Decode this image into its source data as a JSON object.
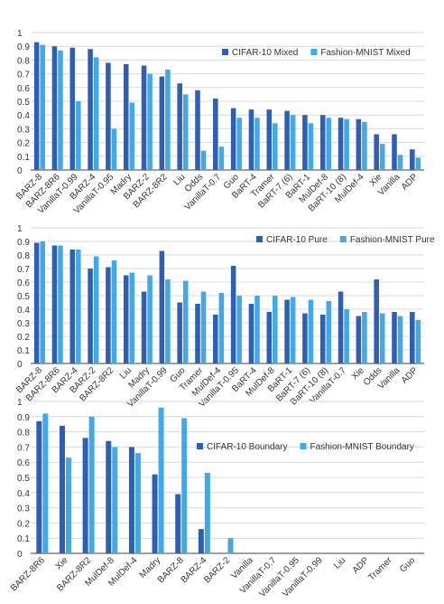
{
  "colors": {
    "series1": "#2f5fb3",
    "series2": "#41a9e6",
    "grid": "#d9d9d9",
    "axis": "#404040",
    "text": "#333333"
  },
  "chart_data": [
    {
      "type": "bar",
      "ylim": [
        0,
        1
      ],
      "yticks": [
        "0",
        "0.1",
        "0.2",
        "0.3",
        "0.4",
        "0.5",
        "0.6",
        "0.7",
        "0.8",
        "0.9",
        "1"
      ],
      "grid": true,
      "legend_position": "top-right",
      "categories": [
        "BARZ-8",
        "BARZ-8R6",
        "VanillaT-0.99",
        "BARZ-4",
        "VanillaT-0.95",
        "Madry",
        "BARZ-2",
        "BARZ-8R2",
        "Liu",
        "Odds",
        "VanillaT-0.7",
        "Guo",
        "BaRT-4",
        "Tramer",
        "BaRT-7 (6)",
        "BaRT-1",
        "MulDef-8",
        "BaRT-10 (8)",
        "MulDef-4",
        "Xie",
        "Vanilla",
        "ADP"
      ],
      "series": [
        {
          "name": "CIFAR-10 Mixed",
          "values": [
            0.93,
            0.9,
            0.89,
            0.88,
            0.78,
            0.77,
            0.76,
            0.68,
            0.63,
            0.58,
            0.52,
            0.45,
            0.44,
            0.44,
            0.43,
            0.4,
            0.4,
            0.38,
            0.37,
            0.26,
            0.26,
            0.15
          ]
        },
        {
          "name": "Fashion-MNIST Mixed",
          "values": [
            0.91,
            0.87,
            0.5,
            0.82,
            0.3,
            0.49,
            0.7,
            0.73,
            0.55,
            0.14,
            0.17,
            0.38,
            0.38,
            0.34,
            0.4,
            0.34,
            0.38,
            0.37,
            0.35,
            0.19,
            0.11,
            0.09
          ]
        }
      ]
    },
    {
      "type": "bar",
      "ylim": [
        0,
        1
      ],
      "yticks": [
        "0",
        "0.1",
        "0.2",
        "0.3",
        "0.4",
        "0.5",
        "0.6",
        "0.7",
        "0.8",
        "0.9",
        "1"
      ],
      "grid": true,
      "legend_position": "top-right",
      "categories": [
        "BARZ-8",
        "BARZ-8R6",
        "BARZ-4",
        "BARZ-2",
        "BARZ-8R2",
        "Liu",
        "Madry",
        "VanillaT-0.99",
        "Guo",
        "Tramer",
        "MulDef-4",
        "VanillaT-0.95",
        "BaRT-4",
        "MulDef-8",
        "BaRT-1",
        "BaRT-7 (6)",
        "BaRT-10 (8)",
        "VanillaT-0.7",
        "Xie",
        "Odds",
        "Vanilla",
        "ADP"
      ],
      "series": [
        {
          "name": "CIFAR-10 Pure",
          "values": [
            0.89,
            0.87,
            0.84,
            0.7,
            0.71,
            0.65,
            0.53,
            0.83,
            0.45,
            0.44,
            0.36,
            0.72,
            0.44,
            0.38,
            0.47,
            0.37,
            0.36,
            0.53,
            0.35,
            0.62,
            0.38,
            0.38
          ]
        },
        {
          "name": "Fashion-MNIST Pure",
          "values": [
            0.9,
            0.87,
            0.84,
            0.79,
            0.76,
            0.67,
            0.65,
            0.62,
            0.61,
            0.53,
            0.52,
            0.5,
            0.5,
            0.5,
            0.49,
            0.47,
            0.46,
            0.4,
            0.38,
            0.37,
            0.35,
            0.32
          ]
        }
      ]
    },
    {
      "type": "bar",
      "ylim": [
        0,
        1
      ],
      "yticks": [
        "0",
        "0.1",
        "0.2",
        "0.3",
        "0.4",
        "0.5",
        "0.6",
        "0.7",
        "0.8",
        "0.9",
        "1"
      ],
      "grid": true,
      "legend_position": "top-right",
      "categories": [
        "BARZ-8R6",
        "Xie",
        "BARZ-8R2",
        "MulDef-8",
        "MulDef-4",
        "Madry",
        "BARZ-8",
        "BARZ-4",
        "BARZ-2",
        "Vanilla",
        "VanillaT-0.7",
        "VanillaT-0.95",
        "VanillaT-0.99",
        "Liu",
        "ADP",
        "Tramer",
        "Guo"
      ],
      "series": [
        {
          "name": "CIFAR-10 Boundary",
          "values": [
            0.87,
            0.84,
            0.76,
            0.74,
            0.7,
            0.52,
            0.39,
            0.16,
            0.0,
            0,
            0,
            0,
            0,
            0,
            0,
            0,
            0
          ]
        },
        {
          "name": "Fashion-MNIST Boundary",
          "values": [
            0.92,
            0.63,
            0.9,
            0.7,
            0.66,
            0.96,
            0.89,
            0.53,
            0.1,
            0,
            0,
            0,
            0,
            0,
            0,
            0,
            0
          ]
        }
      ]
    }
  ]
}
